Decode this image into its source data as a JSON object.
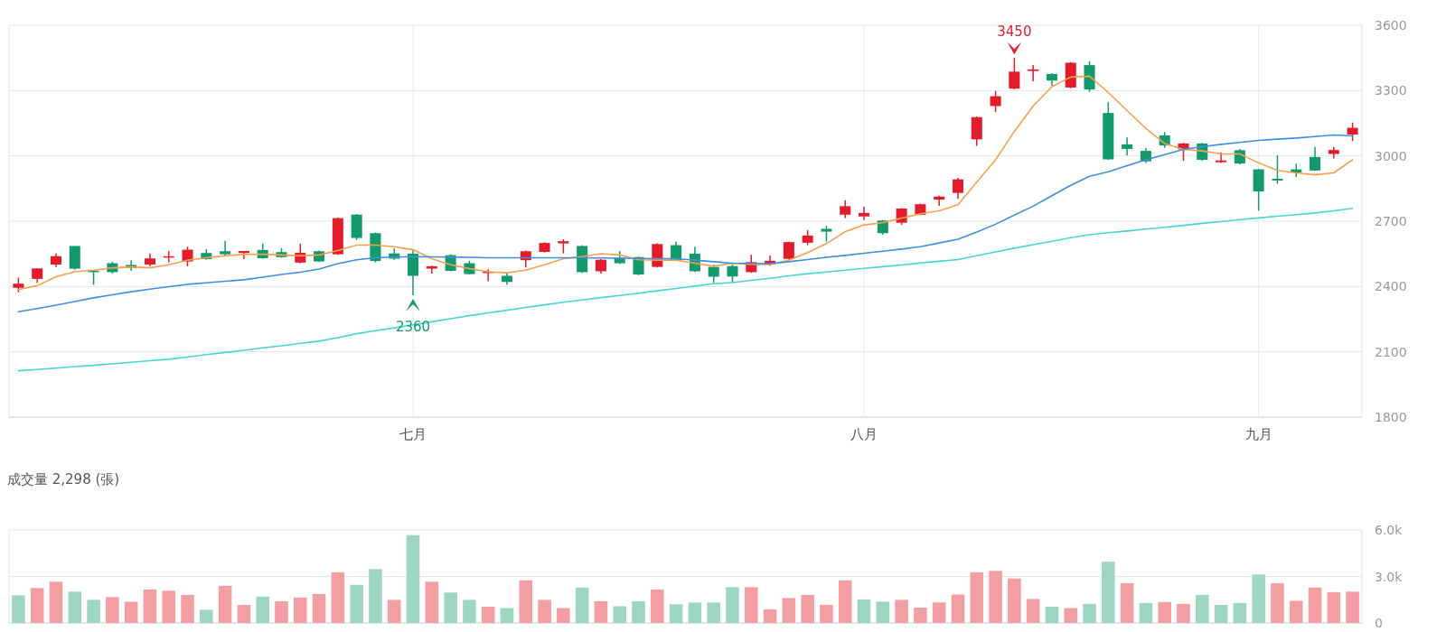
{
  "chart_data": [
    {
      "type": "candlestick",
      "categories": [
        null,
        null,
        null,
        null,
        null,
        null,
        null,
        null,
        null,
        null,
        null,
        null,
        null,
        null,
        null,
        null,
        null,
        null,
        null,
        null,
        null,
        "七月",
        null,
        null,
        null,
        null,
        null,
        null,
        null,
        null,
        null,
        null,
        null,
        null,
        null,
        null,
        null,
        null,
        null,
        null,
        null,
        null,
        null,
        null,
        null,
        "八月",
        null,
        null,
        null,
        null,
        null,
        null,
        null,
        null,
        null,
        null,
        null,
        null,
        null,
        null,
        null,
        null,
        null,
        null,
        null,
        null,
        "九月",
        null,
        null,
        null,
        null,
        null
      ],
      "ohlc": [
        [
          2394,
          2441,
          2373,
          2413
        ],
        [
          2435,
          2483,
          2417,
          2483
        ],
        [
          2501,
          2552,
          2489,
          2539
        ],
        [
          2586,
          2586,
          2477,
          2482
        ],
        [
          2472,
          2475,
          2408,
          2468
        ],
        [
          2507,
          2514,
          2459,
          2466
        ],
        [
          2499,
          2521,
          2472,
          2485
        ],
        [
          2501,
          2552,
          2493,
          2529
        ],
        [
          2535,
          2562,
          2511,
          2539
        ],
        [
          2515,
          2583,
          2493,
          2569
        ],
        [
          2554,
          2572,
          2523,
          2526
        ],
        [
          2562,
          2610,
          2541,
          2548
        ],
        [
          2554,
          2563,
          2526,
          2563
        ],
        [
          2568,
          2597,
          2528,
          2530
        ],
        [
          2558,
          2576,
          2532,
          2535
        ],
        [
          2510,
          2597,
          2507,
          2555
        ],
        [
          2562,
          2565,
          2512,
          2515
        ],
        [
          2548,
          2717,
          2545,
          2714
        ],
        [
          2730,
          2733,
          2614,
          2623
        ],
        [
          2645,
          2648,
          2511,
          2517
        ],
        [
          2552,
          2576,
          2523,
          2528
        ],
        [
          2551,
          2569,
          2360,
          2449
        ],
        [
          2482,
          2496,
          2459,
          2493
        ],
        [
          2544,
          2548,
          2470,
          2472
        ],
        [
          2507,
          2518,
          2455,
          2457
        ],
        [
          2463,
          2479,
          2424,
          2468
        ],
        [
          2449,
          2466,
          2408,
          2421
        ],
        [
          2521,
          2565,
          2487,
          2562
        ],
        [
          2559,
          2603,
          2556,
          2600
        ],
        [
          2598,
          2617,
          2552,
          2608
        ],
        [
          2586,
          2590,
          2463,
          2466
        ],
        [
          2470,
          2526,
          2459,
          2523
        ],
        [
          2532,
          2562,
          2504,
          2507
        ],
        [
          2535,
          2537,
          2452,
          2455
        ],
        [
          2490,
          2598,
          2487,
          2595
        ],
        [
          2590,
          2607,
          2518,
          2521
        ],
        [
          2551,
          2583,
          2467,
          2470
        ],
        [
          2490,
          2500,
          2417,
          2445
        ],
        [
          2494,
          2501,
          2418,
          2446
        ],
        [
          2466,
          2546,
          2463,
          2512
        ],
        [
          2502,
          2542,
          2496,
          2518
        ],
        [
          2527,
          2606,
          2524,
          2604
        ],
        [
          2601,
          2659,
          2590,
          2634
        ],
        [
          2665,
          2679,
          2606,
          2652
        ],
        [
          2730,
          2796,
          2714,
          2769
        ],
        [
          2722,
          2766,
          2705,
          2738
        ],
        [
          2703,
          2705,
          2638,
          2645
        ],
        [
          2693,
          2760,
          2683,
          2758
        ],
        [
          2730,
          2781,
          2727,
          2778
        ],
        [
          2799,
          2817,
          2771,
          2813
        ],
        [
          2830,
          2899,
          2803,
          2892
        ],
        [
          3076,
          3181,
          3046,
          3178
        ],
        [
          3229,
          3298,
          3201,
          3274
        ],
        [
          3309,
          3450,
          3306,
          3387
        ],
        [
          3390,
          3417,
          3343,
          3397
        ],
        [
          3376,
          3380,
          3321,
          3346
        ],
        [
          3314,
          3431,
          3311,
          3428
        ],
        [
          3417,
          3435,
          3294,
          3305
        ],
        [
          3197,
          3247,
          2982,
          2984
        ],
        [
          3053,
          3085,
          3002,
          3032
        ],
        [
          3023,
          3037,
          2968,
          2975
        ],
        [
          3094,
          3109,
          3037,
          3048
        ],
        [
          3030,
          3060,
          2977,
          3057
        ],
        [
          3057,
          3060,
          2977,
          2982
        ],
        [
          2971,
          3016,
          2968,
          2979
        ],
        [
          3026,
          3032,
          2961,
          2965
        ],
        [
          2938,
          2940,
          2748,
          2837
        ],
        [
          2895,
          3002,
          2872,
          2887
        ],
        [
          2938,
          2964,
          2903,
          2924
        ],
        [
          2995,
          3041,
          2931,
          2933
        ],
        [
          3009,
          3041,
          2988,
          3027
        ],
        [
          3098,
          3153,
          3068,
          3129
        ]
      ],
      "series": [
        {
          "type": "line",
          "color": "#f5a04e",
          "values": [
            2386,
            2404,
            2445,
            2468,
            2475,
            2486,
            2490,
            2486,
            2500,
            2521,
            2532,
            2541,
            2548,
            2548,
            2545,
            2541,
            2545,
            2565,
            2590,
            2590,
            2583,
            2569,
            2528,
            2500,
            2482,
            2468,
            2463,
            2475,
            2500,
            2528,
            2537,
            2551,
            2545,
            2523,
            2521,
            2521,
            2507,
            2493,
            2507,
            2501,
            2501,
            2521,
            2556,
            2597,
            2652,
            2683,
            2693,
            2714,
            2734,
            2748,
            2776,
            2879,
            2982,
            3112,
            3229,
            3318,
            3362,
            3366,
            3291,
            3208,
            3126,
            3057,
            3030,
            3023,
            3009,
            3009,
            2968,
            2933,
            2922,
            2913,
            2922,
            2982
          ]
        },
        {
          "type": "line",
          "color": "#3d8fe0",
          "values": [
            2284,
            2299,
            2314,
            2331,
            2348,
            2362,
            2376,
            2388,
            2399,
            2410,
            2417,
            2424,
            2431,
            2443,
            2455,
            2466,
            2480,
            2505,
            2523,
            2532,
            2535,
            2537,
            2536,
            2535,
            2534,
            2532,
            2532,
            2532,
            2532,
            2532,
            2532,
            2531,
            2530,
            2529,
            2528,
            2528,
            2521,
            2514,
            2507,
            2506,
            2505,
            2514,
            2524,
            2534,
            2543,
            2553,
            2562,
            2572,
            2583,
            2600,
            2617,
            2650,
            2686,
            2728,
            2769,
            2817,
            2865,
            2906,
            2927,
            2955,
            2982,
            3006,
            3030,
            3042,
            3053,
            3062,
            3071,
            3077,
            3082,
            3089,
            3096,
            3092
          ]
        },
        {
          "type": "line",
          "color": "#45d6d2",
          "values": [
            2013,
            2019,
            2025,
            2032,
            2038,
            2045,
            2052,
            2059,
            2066,
            2076,
            2087,
            2097,
            2107,
            2118,
            2128,
            2139,
            2149,
            2165,
            2183,
            2197,
            2210,
            2224,
            2238,
            2252,
            2266,
            2279,
            2291,
            2304,
            2316,
            2328,
            2338,
            2349,
            2359,
            2369,
            2380,
            2391,
            2402,
            2413,
            2418,
            2428,
            2438,
            2449,
            2459,
            2467,
            2475,
            2483,
            2491,
            2499,
            2508,
            2516,
            2524,
            2541,
            2559,
            2576,
            2592,
            2608,
            2624,
            2638,
            2647,
            2655,
            2664,
            2672,
            2681,
            2690,
            2698,
            2707,
            2715,
            2723,
            2730,
            2738,
            2748,
            2759
          ]
        }
      ],
      "ylim": [
        1800,
        3600
      ],
      "yticks": [
        1800,
        2100,
        2400,
        2700,
        3000,
        3300,
        3600
      ],
      "grid": true,
      "annotations": [
        {
          "text": "3450",
          "y": 3450
        },
        {
          "text": "2360",
          "y": 2360
        }
      ]
    },
    {
      "type": "bar",
      "title": "成交量  2,298 (張)",
      "categories": [
        null,
        null,
        null,
        null,
        null,
        null,
        null,
        null,
        null,
        null,
        null,
        null,
        null,
        null,
        null,
        null,
        null,
        null,
        null,
        null,
        null,
        null,
        null,
        null,
        null,
        null,
        null,
        null,
        null,
        null,
        null,
        null,
        null,
        null,
        null,
        null,
        null,
        null,
        null,
        null,
        null,
        null,
        null,
        null,
        null,
        null,
        null,
        null,
        null,
        null,
        null,
        null,
        null,
        null,
        null,
        null,
        null,
        null,
        null,
        null,
        null,
        null,
        null,
        null,
        null,
        null,
        null,
        null,
        null,
        null,
        null,
        null
      ],
      "values": [
        1780,
        2250,
        2660,
        2020,
        1490,
        1670,
        1370,
        2160,
        2080,
        1810,
        850,
        2400,
        1170,
        1700,
        1400,
        1640,
        1870,
        3270,
        2460,
        3480,
        1490,
        5670,
        2660,
        1960,
        1490,
        1050,
        960,
        2750,
        1490,
        960,
        2280,
        1400,
        1080,
        1400,
        2160,
        1200,
        1320,
        1320,
        2310,
        2310,
        880,
        1610,
        1810,
        1170,
        2750,
        1520,
        1370,
        1490,
        990,
        1320,
        1840,
        3270,
        3360,
        2870,
        1550,
        1050,
        960,
        1230,
        3950,
        2570,
        1290,
        1350,
        1230,
        1810,
        1170,
        1290,
        3130,
        2570,
        1430,
        2280,
        1990,
        2020
      ],
      "colors": [
        "#9dd6c1",
        "#f29ea3",
        "#f29ea3",
        "#9dd6c1",
        "#9dd6c1",
        "#f29ea3",
        "#f29ea3",
        "#f29ea3",
        "#f29ea3",
        "#f29ea3",
        "#9dd6c1",
        "#f29ea3",
        "#f29ea3",
        "#9dd6c1",
        "#f29ea3",
        "#f29ea3",
        "#f29ea3",
        "#f29ea3",
        "#9dd6c1",
        "#9dd6c1",
        "#f29ea3",
        "#9dd6c1",
        "#f29ea3",
        "#9dd6c1",
        "#9dd6c1",
        "#f29ea3",
        "#9dd6c1",
        "#f29ea3",
        "#f29ea3",
        "#f29ea3",
        "#9dd6c1",
        "#f29ea3",
        "#9dd6c1",
        "#9dd6c1",
        "#f29ea3",
        "#9dd6c1",
        "#9dd6c1",
        "#9dd6c1",
        "#9dd6c1",
        "#f29ea3",
        "#f29ea3",
        "#f29ea3",
        "#f29ea3",
        "#f29ea3",
        "#f29ea3",
        "#9dd6c1",
        "#9dd6c1",
        "#f29ea3",
        "#f29ea3",
        "#f29ea3",
        "#f29ea3",
        "#f29ea3",
        "#f29ea3",
        "#f29ea3",
        "#f29ea3",
        "#9dd6c1",
        "#f29ea3",
        "#9dd6c1",
        "#9dd6c1",
        "#f29ea3",
        "#9dd6c1",
        "#f29ea3",
        "#f29ea3",
        "#9dd6c1",
        "#9dd6c1",
        "#9dd6c1",
        "#9dd6c1",
        "#f29ea3",
        "#f29ea3",
        "#f29ea3",
        "#f29ea3",
        "#f29ea3"
      ],
      "ylim": [
        0,
        6000
      ],
      "yticks": [
        {
          "value": 0,
          "label": "0"
        },
        {
          "value": 3000,
          "label": "3.0k"
        },
        {
          "value": 6000,
          "label": "6.0k"
        }
      ],
      "grid": "y",
      "tick_labels": "y"
    }
  ]
}
